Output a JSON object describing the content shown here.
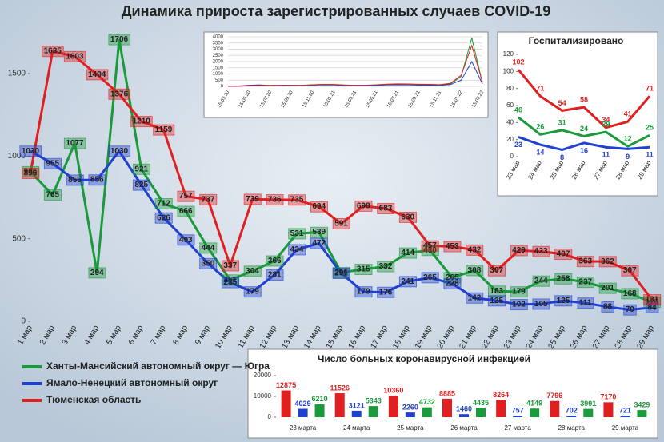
{
  "chart_data": [
    {
      "type": "line",
      "title": "Динамика прироста зарегистрированных случаев COVID-19",
      "categories": [
        "1 мар",
        "2 мар",
        "3 мар",
        "4 мар",
        "5 мар",
        "6 мар",
        "7 мар",
        "8 мар",
        "9 мар",
        "10 мар",
        "11 мар",
        "12 мар",
        "13 мар",
        "14 мар",
        "15 мар",
        "16 мар",
        "17 мар",
        "18 мар",
        "19 мар",
        "20 мар",
        "21 мар",
        "22 мар",
        "23 мар",
        "24 мар",
        "25 мар",
        "26 мар",
        "27 мар",
        "28 мар",
        "29 мар"
      ],
      "series": [
        {
          "name": "Ханты-Мансийский автономный округ — Югра",
          "color": "#1a9a3a",
          "values": [
            906,
            765,
            1077,
            294,
            1706,
            921,
            712,
            666,
            444,
            251,
            304,
            366,
            531,
            539,
            296,
            315,
            332,
            414,
            430,
            265,
            308,
            183,
            179,
            244,
            258,
            237,
            201,
            168,
            116
          ]
        },
        {
          "name": "Ямало-Ненецкий автономный округ",
          "color": "#2040d0",
          "values": [
            1030,
            955,
            855,
            856,
            1030,
            825,
            626,
            493,
            350,
            235,
            179,
            281,
            434,
            472,
            291,
            179,
            176,
            241,
            265,
            228,
            142,
            125,
            102,
            105,
            125,
            111,
            88,
            70,
            84
          ]
        },
        {
          "name": "Тюменская область",
          "color": "#e02020",
          "values": [
            896,
            1635,
            1603,
            1494,
            1376,
            1210,
            1159,
            757,
            737,
            337,
            739,
            736,
            735,
            694,
            591,
            698,
            683,
            630,
            457,
            453,
            432,
            307,
            429,
            423,
            407,
            363,
            362,
            307,
            131
          ]
        }
      ],
      "ylim": [
        0,
        1800
      ],
      "yticks": [
        0,
        500,
        1000,
        1500
      ],
      "legend": "bottom-left"
    },
    {
      "type": "line",
      "categories": [
        "15.03.20",
        null,
        "15.05.20",
        null,
        "15.07.20",
        null,
        "15.09.20",
        null,
        "15.11.20",
        null,
        "15.01.21",
        null,
        "15.03.21",
        null,
        "15.05.21",
        null,
        "15.07.21",
        null,
        "15.09.21",
        null,
        "15.11.21",
        null,
        "15.01.22",
        null,
        "15.03.22"
      ],
      "series": [
        {
          "color": "#1a9a3a",
          "values": [
            0,
            20,
            60,
            80,
            90,
            100,
            90,
            80,
            120,
            150,
            140,
            100,
            80,
            90,
            100,
            160,
            180,
            170,
            150,
            140,
            120,
            200,
            800,
            3900,
            300
          ]
        },
        {
          "color": "#2040d0",
          "values": [
            0,
            30,
            90,
            120,
            60,
            50,
            60,
            70,
            100,
            120,
            110,
            80,
            60,
            60,
            80,
            120,
            130,
            120,
            100,
            90,
            80,
            150,
            500,
            2000,
            200
          ]
        },
        {
          "color": "#e02020",
          "values": [
            0,
            10,
            40,
            60,
            70,
            80,
            90,
            90,
            130,
            160,
            150,
            110,
            90,
            100,
            130,
            180,
            200,
            190,
            170,
            160,
            140,
            250,
            900,
            3300,
            350
          ]
        }
      ],
      "ylim": [
        0,
        4000
      ],
      "yticks": [
        0,
        500,
        1000,
        1500,
        2000,
        2500,
        3000,
        3500,
        4000
      ],
      "grid": true
    },
    {
      "type": "line",
      "title": "Госпитализировано",
      "categories": [
        "23 мар",
        "24 мар",
        "25 мар",
        "26 мар",
        "27 мар",
        "28 мар",
        "29 мар"
      ],
      "series": [
        {
          "color": "#e02020",
          "values": [
            102,
            71,
            54,
            58,
            34,
            41,
            71
          ]
        },
        {
          "color": "#1a9a3a",
          "values": [
            46,
            26,
            31,
            24,
            29,
            12,
            25
          ]
        },
        {
          "color": "#2040d0",
          "values": [
            23,
            14,
            8,
            16,
            11,
            9,
            11
          ]
        }
      ],
      "ylim": [
        0,
        120
      ],
      "yticks": [
        0,
        20,
        40,
        60,
        80,
        100,
        120
      ]
    },
    {
      "type": "bar",
      "title": "Число больных коронавирусной  инфекцией",
      "categories": [
        "23 марта",
        "24 марта",
        "25 марта",
        "26 марта",
        "27 марта",
        "28 марта",
        "29 марта"
      ],
      "series": [
        {
          "color": "#e02020",
          "values": [
            12875,
            11526,
            10360,
            8885,
            8264,
            7796,
            7170
          ]
        },
        {
          "color": "#2040d0",
          "values": [
            4029,
            3121,
            2260,
            1460,
            757,
            702,
            721
          ]
        },
        {
          "color": "#1a9a3a",
          "values": [
            6210,
            5343,
            4732,
            4435,
            4149,
            3991,
            3429
          ]
        }
      ],
      "ylim": [
        0,
        20000
      ],
      "yticks": [
        0,
        10000,
        20000
      ]
    }
  ]
}
